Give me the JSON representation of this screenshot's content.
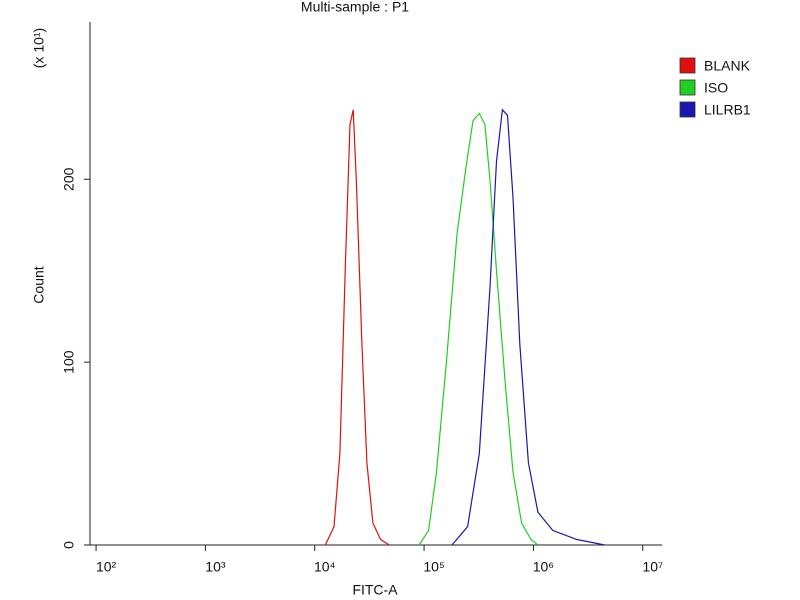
{
  "chart_data": {
    "type": "line",
    "title": "Multi-sample : P1",
    "x_label": "FITC-A",
    "y_label": "Count",
    "y_scale_note": "(x 10¹)",
    "xscale": "log",
    "legend": "right",
    "xlim": [
      88,
      15000000
    ],
    "xticks": [
      {
        "value": 100,
        "label": "10²"
      },
      {
        "value": 1000,
        "label": "10³"
      },
      {
        "value": 10000,
        "label": "10⁴"
      },
      {
        "value": 100000,
        "label": "10⁵"
      },
      {
        "value": 1000000,
        "label": "10⁶"
      },
      {
        "value": 10000000,
        "label": "10⁷"
      }
    ],
    "ylim": [
      0,
      286
    ],
    "yticks": [
      0,
      100,
      200
    ],
    "series": [
      {
        "name": "BLANK",
        "color": "#e01010",
        "x": [
          12500,
          15000,
          17000,
          19000,
          21000,
          22500,
          24000,
          27000,
          30000,
          34000,
          40000,
          48000
        ],
        "values": [
          0,
          10,
          50,
          150,
          230,
          238,
          200,
          110,
          45,
          12,
          3,
          0
        ]
      },
      {
        "name": "ISO",
        "color": "#20d020",
        "x": [
          90000,
          110000,
          130000,
          160000,
          200000,
          240000,
          280000,
          320000,
          360000,
          400000,
          460000,
          550000,
          650000,
          780000,
          950000,
          1100000
        ],
        "values": [
          0,
          8,
          40,
          100,
          170,
          205,
          232,
          236,
          230,
          200,
          150,
          90,
          40,
          12,
          3,
          0
        ]
      },
      {
        "name": "LILRB1",
        "color": "#1818b0",
        "x": [
          180000,
          250000,
          320000,
          400000,
          460000,
          520000,
          580000,
          650000,
          750000,
          900000,
          1100000,
          1500000,
          2500000,
          4500000
        ],
        "values": [
          0,
          10,
          50,
          140,
          210,
          238,
          235,
          190,
          110,
          45,
          18,
          8,
          3,
          0
        ]
      }
    ]
  }
}
